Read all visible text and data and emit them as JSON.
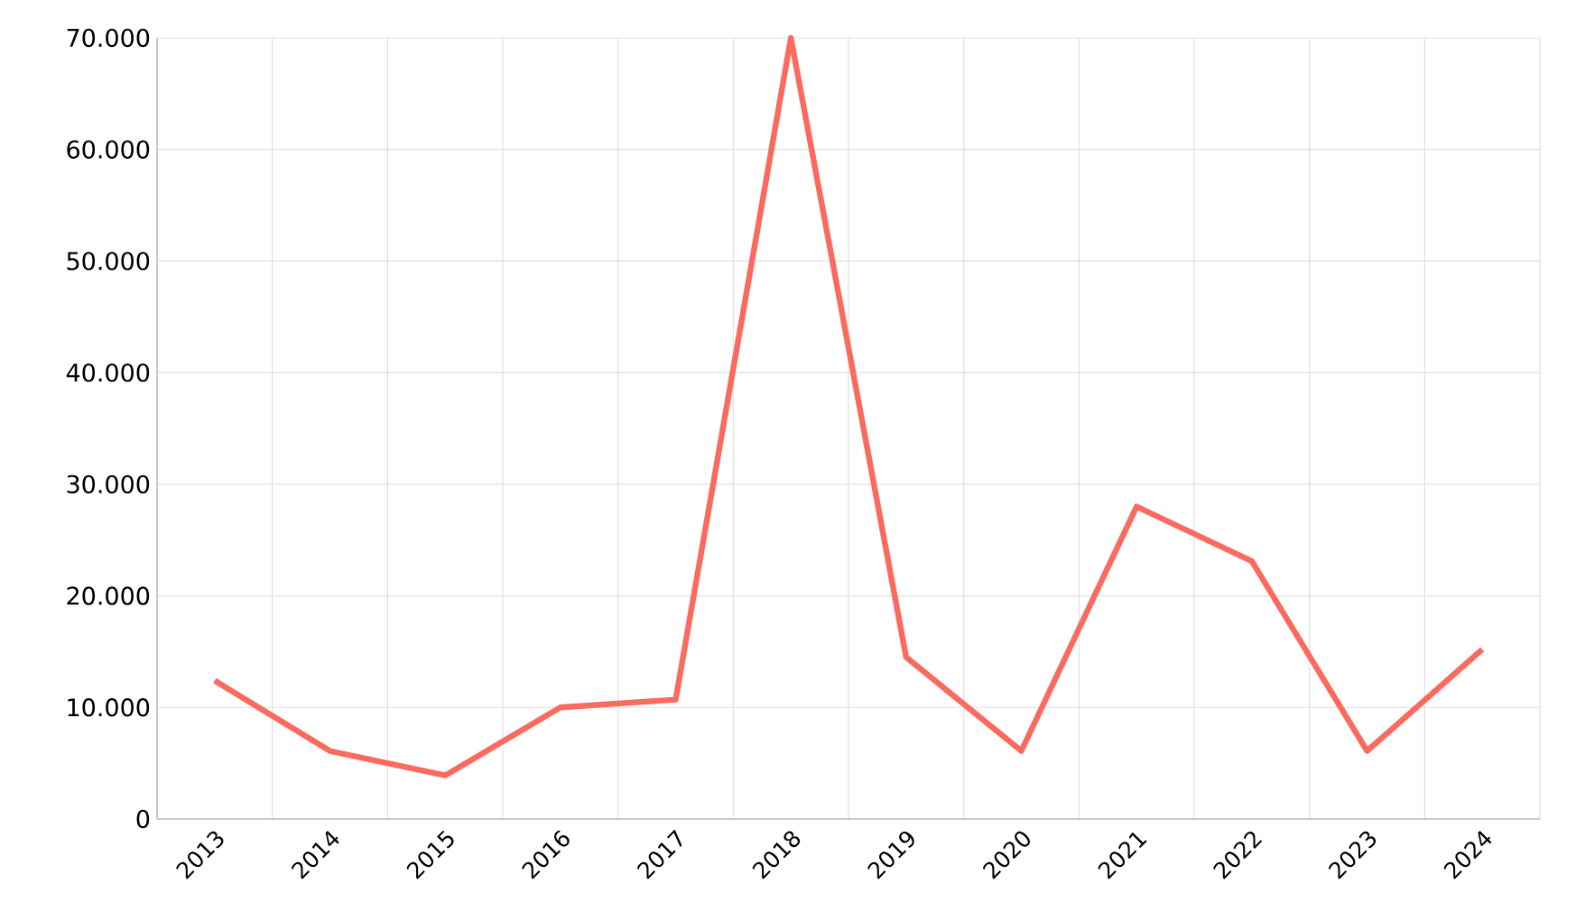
{
  "chart_data": {
    "type": "line",
    "categories": [
      "2013",
      "2014",
      "2015",
      "2016",
      "2017",
      "2018",
      "2019",
      "2020",
      "2021",
      "2022",
      "2023",
      "2024"
    ],
    "values": [
      12400,
      6100,
      3900,
      10000,
      10700,
      70000,
      14500,
      6100,
      28000,
      23100,
      6100,
      15200
    ],
    "color": "#fa6a5e",
    "ylim": [
      0,
      70000
    ],
    "yticks": [
      0,
      {
        "value": 10000,
        "label": "10.000"
      },
      {
        "value": 20000,
        "label": "20.000"
      },
      {
        "value": 30000,
        "label": "30.000"
      },
      {
        "value": 40000,
        "label": "40.000"
      },
      {
        "value": 50000,
        "label": "50.000"
      },
      {
        "value": 60000,
        "label": "60.000"
      },
      {
        "value": 70000,
        "label": "70.000"
      }
    ],
    "grid": true
  }
}
